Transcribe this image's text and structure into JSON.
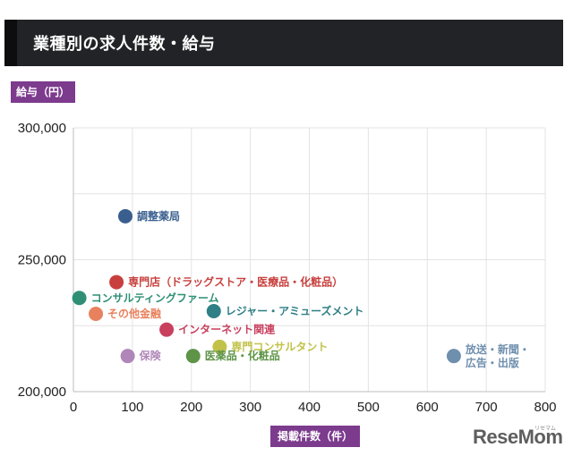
{
  "header": {
    "title": "業種別の求人件数・給与"
  },
  "chart_data": {
    "type": "scatter",
    "title": "業種別の求人件数・給与",
    "ylabel": "給与（円）",
    "xlabel": "掲載件数（件）",
    "xlim": [
      0,
      800
    ],
    "ylim": [
      200000,
      300000
    ],
    "x_ticks": [
      "0",
      "100",
      "200",
      "300",
      "400",
      "500",
      "600",
      "700",
      "800"
    ],
    "y_ticks": [
      "200,000",
      "250,000",
      "300,000"
    ],
    "grid": true,
    "points": [
      {
        "label": "調整薬局",
        "x": 88,
        "y": 266500,
        "color": "#3a5f8f"
      },
      {
        "label": "専門店（ドラッグストア・医療品・化粧品）",
        "x": 73,
        "y": 241500,
        "color": "#c8403e"
      },
      {
        "label": "コンサルティングファーム",
        "x": 10,
        "y": 235500,
        "color": "#2f8f74"
      },
      {
        "label": "その他金融",
        "x": 38,
        "y": 229500,
        "color": "#e8825e"
      },
      {
        "label": "レジャー・アミューズメント",
        "x": 238,
        "y": 230500,
        "color": "#2f7f86"
      },
      {
        "label": "インターネット関連",
        "x": 158,
        "y": 223500,
        "color": "#c8405e"
      },
      {
        "label": "専門コンサルタント",
        "x": 248,
        "y": 217000,
        "color": "#c2c24a"
      },
      {
        "label": "保険",
        "x": 92,
        "y": 213500,
        "color": "#b086b8"
      },
      {
        "label": "医薬品・化粧品",
        "x": 203,
        "y": 213500,
        "color": "#5e9447"
      },
      {
        "label": "放送・新聞・\n広告・出版",
        "x": 645,
        "y": 213500,
        "color": "#6f8fae"
      }
    ]
  },
  "watermark": {
    "brand": "ReseMom",
    "sub": "リセマム"
  }
}
